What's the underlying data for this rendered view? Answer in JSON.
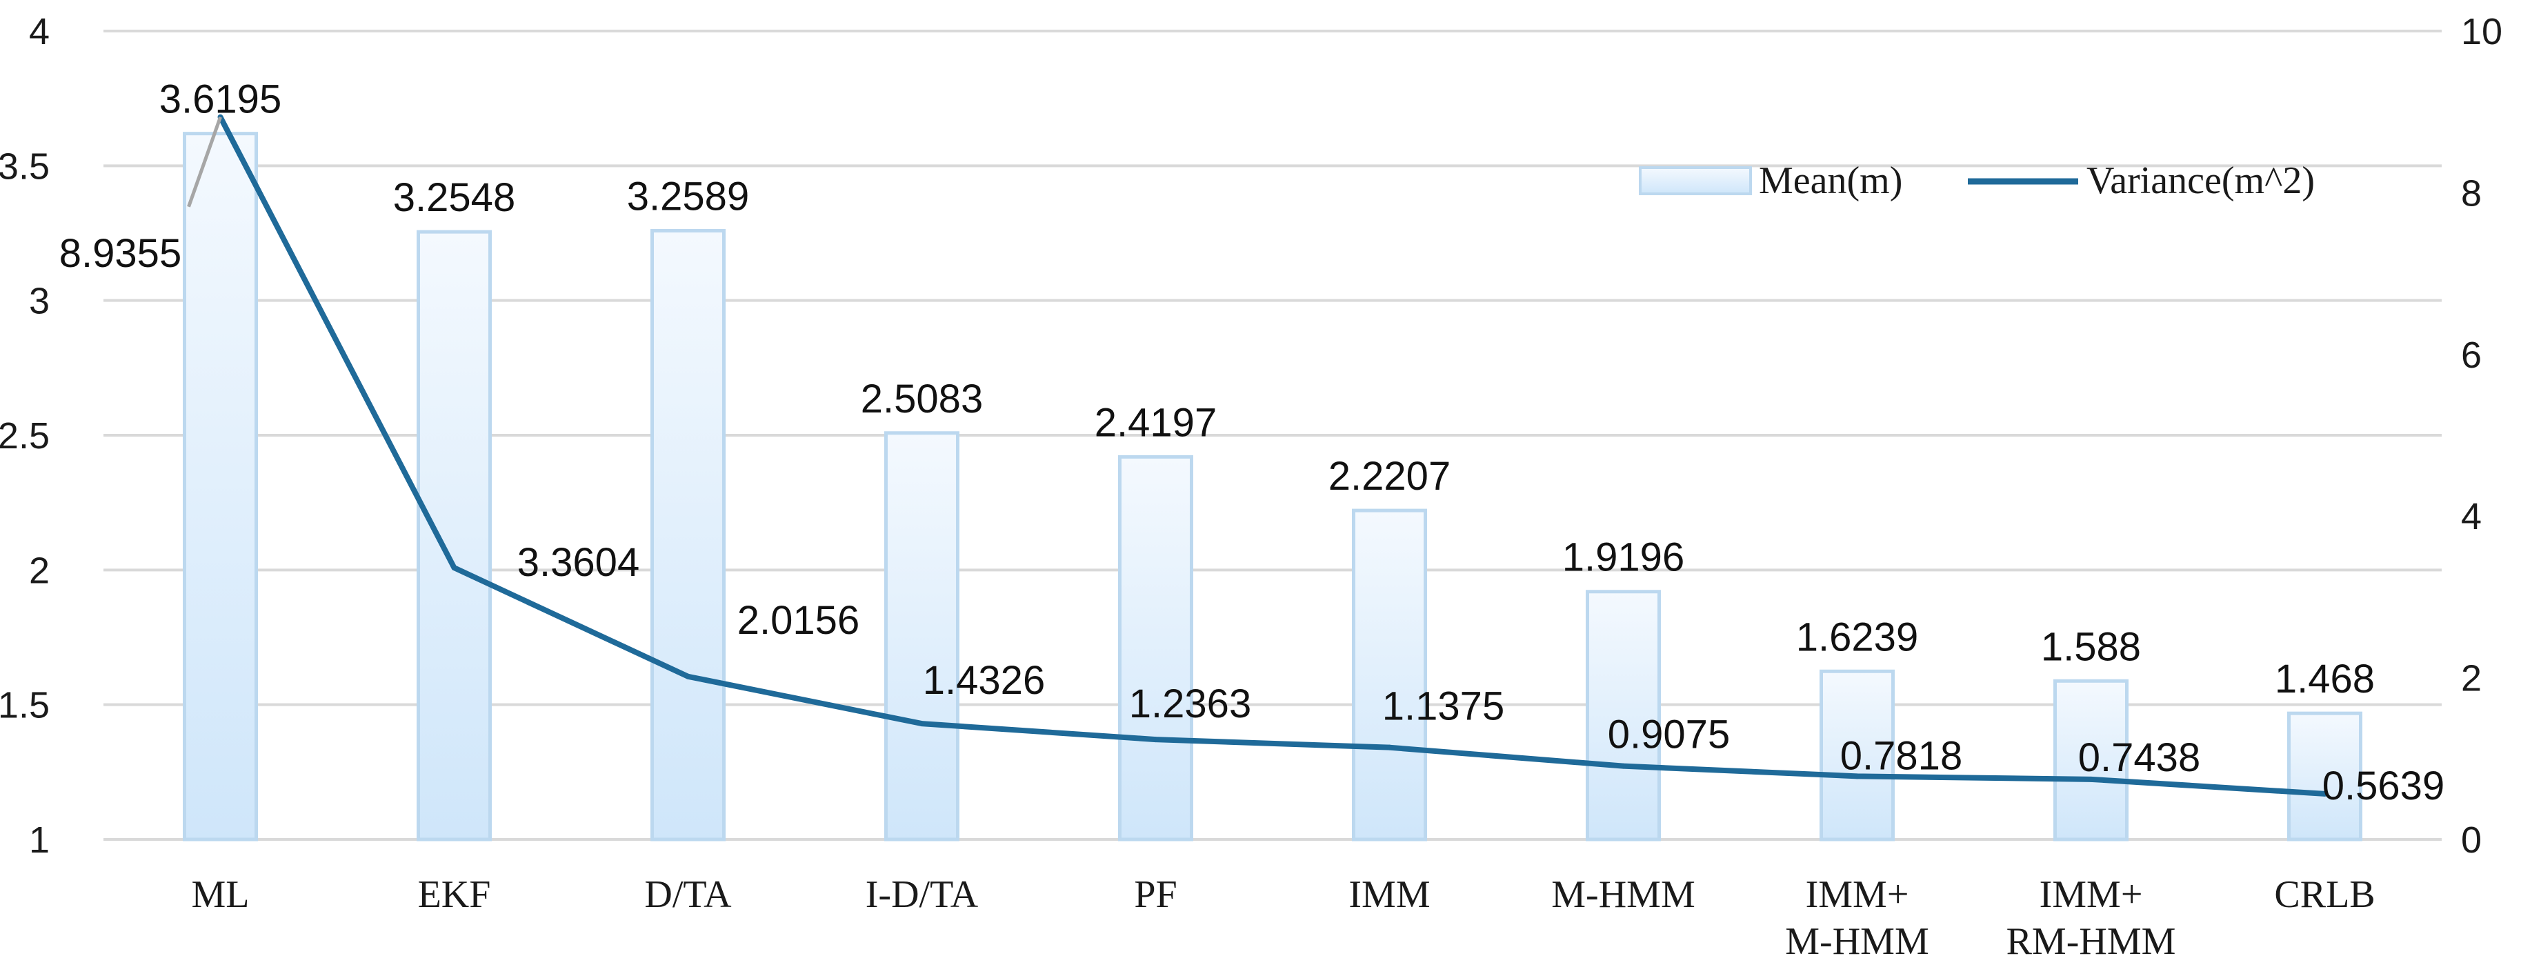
{
  "chart_data": {
    "type": "bar",
    "categories": [
      [
        "ML"
      ],
      [
        "EKF"
      ],
      [
        "D/TA"
      ],
      [
        "I-D/TA"
      ],
      [
        "PF"
      ],
      [
        "IMM"
      ],
      [
        "M-HMM"
      ],
      [
        "IMM+",
        "M-HMM"
      ],
      [
        "IMM+",
        "RM-HMM"
      ],
      [
        "CRLB"
      ]
    ],
    "series": [
      {
        "name": "Mean(m)",
        "kind": "bar",
        "axis": "left",
        "values": [
          3.6195,
          3.2548,
          3.2589,
          2.5083,
          2.4197,
          2.2207,
          1.9196,
          1.6239,
          1.588,
          1.468
        ],
        "labels": [
          "3.6195",
          "3.2548",
          "3.2589",
          "2.5083",
          "2.4197",
          "2.2207",
          "1.9196",
          "1.6239",
          "1.588",
          "1.468"
        ]
      },
      {
        "name": "Variance(m^2)",
        "kind": "line",
        "axis": "right",
        "values": [
          8.9355,
          3.3604,
          2.0156,
          1.4326,
          1.2363,
          1.1375,
          0.9075,
          0.7818,
          0.7438,
          0.5639
        ],
        "labels": [
          "8.9355",
          "3.3604",
          "2.0156",
          "1.4326",
          "1.2363",
          "1.1375",
          "0.9075",
          "0.7818",
          "0.7438",
          "0.5639"
        ]
      }
    ],
    "y_left": {
      "ylim": [
        1,
        4
      ],
      "ticks": [
        1,
        1.5,
        2,
        2.5,
        3,
        3.5,
        4
      ],
      "tick_labels": [
        "1",
        "1.5",
        "2",
        "2.5",
        "3",
        "3.5",
        "4"
      ]
    },
    "y_right": {
      "ylim": [
        0,
        10
      ],
      "ticks": [
        0,
        2,
        4,
        6,
        8,
        10
      ],
      "tick_labels": [
        "0",
        "2",
        "4",
        "6",
        "8",
        "10"
      ]
    },
    "grid": true,
    "legend_position": "top-right",
    "colors": {
      "bar_fill_top": "#f4f9fe",
      "bar_fill_bottom": "#cfe6fa",
      "bar_stroke": "#bcd8ef",
      "line": "#1f6a99",
      "grid": "#d9d9d9",
      "leader": "#a6a6a6"
    }
  }
}
